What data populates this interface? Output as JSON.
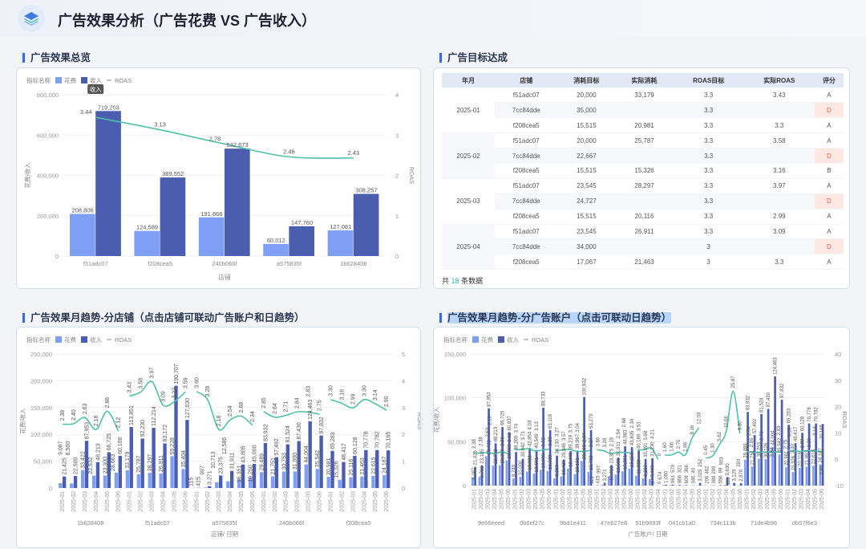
{
  "header": {
    "title": "广告效果分析（广告花费 VS 广告收入）",
    "logo_icon": "layers-icon"
  },
  "colors": {
    "spend": "#7f9ef5",
    "revenue": "#4b5daf",
    "roas": "#4fc2a9",
    "accent": "#3f66d6",
    "bad_grade_bg": "#fde8e4"
  },
  "sections": {
    "overview": "广告效果总览",
    "target": "广告目标达成",
    "store_trend": "广告效果月趋势-分店铺（点击店铺可联动广告账户和日趋势）",
    "account_trend": "广告效果月趋势-分广告账户（点击可联动日趋势）"
  },
  "legend": {
    "title": "指标名称",
    "spend": "花费",
    "revenue": "收入",
    "roas": "ROAS"
  },
  "table": {
    "columns": [
      "年月",
      "店铺",
      "消耗目标",
      "实际消耗",
      "ROAS目标",
      "实际ROAS",
      "评分"
    ],
    "groups": [
      {
        "month": "2025-01",
        "rows": [
          [
            "f51adc07",
            "20,000",
            "33,179",
            "3.3",
            "3.43",
            "A"
          ],
          [
            "7cc84dde",
            "35,000",
            "",
            "3.3",
            "",
            "D"
          ],
          [
            "f208cea5",
            "15,515",
            "20,981",
            "3.3",
            "3.3",
            "A"
          ]
        ]
      },
      {
        "month": "2025-02",
        "rows": [
          [
            "f51adc07",
            "20,000",
            "25,787",
            "3.3",
            "3.58",
            "A"
          ],
          [
            "7cc84dde",
            "22,667",
            "",
            "3.3",
            "",
            "D"
          ],
          [
            "f208cea5",
            "15,515",
            "15,326",
            "3.3",
            "3.16",
            "B"
          ]
        ]
      },
      {
        "month": "2025-03",
        "rows": [
          [
            "f51adc07",
            "23,545",
            "28,297",
            "3.3",
            "3.97",
            "A"
          ],
          [
            "7cc84dde",
            "24,727",
            "",
            "3.3",
            "",
            "D"
          ],
          [
            "f208cea5",
            "15,515",
            "20,116",
            "3.3",
            "2.99",
            "A"
          ]
        ]
      },
      {
        "month": "2025-04",
        "rows": [
          [
            "f51adc07",
            "23,545",
            "26,911",
            "3.3",
            "3.09",
            "A"
          ],
          [
            "7cc84dde",
            "34,000",
            "",
            "3",
            "",
            "D"
          ],
          [
            "f208cea5",
            "17,067",
            "21,463",
            "3",
            "3.3",
            "A"
          ]
        ]
      }
    ],
    "footer_prefix": "共",
    "footer_count": "18",
    "footer_suffix": "条数据"
  },
  "chart_data": [
    {
      "type": "bar+line",
      "id": "overview",
      "xlabel": "店铺",
      "ylabel": "花费/收入",
      "ylabel_right": "ROAS",
      "y_left": {
        "min": 0,
        "max": 800000,
        "ticks": [
          "0",
          "200,000",
          "400,000",
          "600,000",
          "800,000"
        ]
      },
      "y_right": {
        "min": 0,
        "max": 4,
        "ticks": [
          "0",
          "1",
          "2",
          "3",
          "4"
        ]
      },
      "tooltip": "收入",
      "continuous_line": true,
      "groups": [
        {
          "name": "",
          "categories": [
            "f51adc07",
            "f208cea5",
            "240b066f",
            "a575835f",
            "1b628408"
          ],
          "spend": [
            208806,
            124589,
            191666,
            60012,
            127081
          ],
          "revenue": [
            719203,
            389552,
            532673,
            147760,
            308257
          ],
          "roas": [
            3.44,
            3.13,
            2.78,
            2.46,
            2.43
          ]
        }
      ]
    },
    {
      "type": "bar+line",
      "id": "store_trend",
      "xlabel": "店铺/ 日期",
      "ylabel": "花费/收入",
      "ylabel_right": "ROAS",
      "y_left": {
        "min": 0,
        "max": 250000,
        "ticks": [
          "0",
          "50,000",
          "100,000",
          "150,000",
          "200,000",
          "250,000"
        ]
      },
      "y_right": {
        "min": 0,
        "max": 5,
        "ticks": [
          "0",
          "1",
          "2",
          "3",
          "4",
          "5"
        ]
      },
      "groups": [
        {
          "name": "1b628408",
          "categories": [
            "2025-01",
            "2025-02",
            "2025-03",
            "2025-04",
            "2025-05",
            "2025-06"
          ],
          "spend": [
            9087,
            8500,
            33422,
            22932,
            23300,
            28663
          ],
          "revenue": [
            21425,
            22500,
            87953,
            48213,
            66725,
            60100
          ],
          "roas": [
            2.38,
            2.4,
            2.63,
            2.18,
            2.86,
            2.12
          ]
        },
        {
          "name": "f51adc07",
          "categories": [
            "2025-01",
            "2025-02",
            "2025-03",
            "2025-04",
            "2025-05",
            "2025-06"
          ],
          "spend": [
            33179,
            25787,
            28297,
            26911,
            59228,
            35404
          ],
          "revenue": [
            113851,
            92230,
            112214,
            83172,
            190707,
            127030
          ],
          "roas": [
            3.43,
            3.58,
            3.97,
            3.09,
            3.22,
            3.59
          ]
        },
        {
          "name": "a575835f",
          "categories": [
            "2025-01",
            "2025-02",
            "2025-03",
            "2025-04",
            "2025-05",
            "2025-06"
          ],
          "spend": [
            115,
            997,
            10713,
            12586,
            16351,
            19250
          ],
          "revenue": [
            415,
            3271,
            23375,
            31911,
            43805,
            45000
          ],
          "roas": [
            3.6,
            3.28,
            2.18,
            2.54,
            2.68,
            2.34
          ]
        },
        {
          "name": "240b066f",
          "categories": [
            "2025-01",
            "2025-02",
            "2025-03",
            "2025-04",
            "2025-05",
            "2025-06"
          ],
          "spend": [
            29489,
            21751,
            30753,
            31000,
            44004,
            35542
          ],
          "revenue": [
            83932,
            57492,
            81524,
            87430,
            124463,
            97832
          ],
          "roas": [
            2.85,
            2.64,
            2.71,
            2.84,
            2.83,
            2.75
          ]
        },
        {
          "name": "f208cea5",
          "categories": [
            "2025-01",
            "2025-02",
            "2025-03",
            "2025-04",
            "2025-05",
            "2025-06"
          ],
          "spend": [
            20981,
            15326,
            20116,
            21463,
            22615,
            24187
          ],
          "revenue": [
            69283,
            48417,
            60128,
            70778,
            70782,
            70165
          ],
          "roas": [
            3.3,
            3.16,
            2.99,
            3.3,
            3.14,
            2.9
          ]
        }
      ]
    },
    {
      "type": "bar+line",
      "id": "account_trend",
      "xlabel": "广告账户/ 日期",
      "ylabel": "花费/收入",
      "ylabel_right": "ROAS",
      "y_left": {
        "min": 0,
        "max": 150000,
        "ticks": [
          "0",
          "50,000",
          "100,000",
          "150,000"
        ]
      },
      "y_right": {
        "min": -10,
        "max": 40,
        "ticks": [
          "-10",
          "0",
          "10",
          "20",
          "30",
          "40"
        ]
      },
      "groups": [
        {
          "name": "9e66eeed",
          "categories": [
            "2025-01",
            "2025-02",
            "2025-03",
            "2025-04",
            "2025-05",
            "2025-06"
          ],
          "spend": [
            9087,
            9700,
            33422,
            22932,
            23300,
            28663
          ],
          "revenue": [
            21425,
            23105,
            87953,
            48213,
            66725,
            60837
          ],
          "roas": [
            2.38,
            2.38,
            2.63,
            2.1,
            2.86,
            2.12
          ]
        },
        {
          "name": "0b6ef27c",
          "categories": [
            "2025-01",
            "2025-02",
            "2025-03",
            "2025-04",
            "2025-05",
            "2025-06"
          ],
          "spend": [
            8240,
            10000,
            16021,
            13691,
            18000,
            16588
          ],
          "revenue": [
            38269,
            30642,
            42854,
            40549,
            88733,
            63118
          ],
          "roas": [
            3.74,
            3.71,
            4.03,
            3.13,
            3.52,
            3.8
          ]
        },
        {
          "name": "9bd1e411",
          "categories": [
            "2025-01",
            "2025-02",
            "2025-03",
            "2025-04",
            "2025-05",
            "2025-06"
          ],
          "spend": [
            8350,
            10426,
            19440,
            13161,
            28000,
            15783
          ],
          "revenue": [
            34130,
            29846,
            39219,
            39967,
            100932,
            63279
          ],
          "roas": [
            3.27,
            3.57,
            3.75,
            3.04,
            2.97,
            3.37
          ]
        },
        {
          "name": "47e627e8",
          "categories": [
            "2025-01",
            "2025-02",
            "2025-03",
            "2025-04",
            "2025-05",
            "2025-06"
          ],
          "spend": [
            115,
            997,
            10713,
            12586,
            16351,
            19250
          ],
          "revenue": [
            415,
            3271,
            23375,
            31911,
            44983,
            43805
          ],
          "roas": [
            3.6,
            3.28,
            2.18,
            2.54,
            2.68,
            2.34
          ]
        },
        {
          "name": "91b9893f",
          "categories": [
            "2025-01",
            "2025-02",
            "2025-03",
            "2025-04"
          ],
          "spend": [
            11388,
            8260,
            7449,
            0
          ],
          "revenue": [
            40169,
            30391,
            31230,
            0
          ],
          "roas": [
            3.53,
            3.68,
            4.21,
            0
          ]
        },
        {
          "name": "041cb1a0",
          "categories": [
            "2025-01",
            "2025-02",
            "2025-03",
            "2025-04",
            "2025-05",
            "2025-06"
          ],
          "spend": [
            674,
            579,
            321,
            366,
            40,
            252
          ],
          "revenue": [
            1080,
            961,
            866,
            608,
            346,
            3029
          ],
          "roas": [
            1.6,
            1.66,
            2.7,
            1.66,
            8.16,
            12.03
          ]
        },
        {
          "name": "734c113b",
          "categories": [
            "2025-01",
            "2025-02",
            "2025-03",
            "2025-04",
            "2025-05",
            "2025-06"
          ],
          "spend": [
            462,
            299,
            99,
            903,
            121,
            293
          ],
          "revenue": [
            206,
            389,
            556,
            9630,
            3129,
            2870
          ],
          "roas": [
            0.45,
            1.3,
            5.62,
            10.66,
            25.87,
            9.8
          ]
        },
        {
          "name": "71de4b96",
          "categories": [
            "2025-01",
            "2025-02",
            "2025-03",
            "2025-04",
            "2025-05",
            "2025-06"
          ],
          "spend": [
            29489,
            21751,
            30753,
            30126,
            44004,
            35542
          ],
          "revenue": [
            83932,
            57492,
            81524,
            87430,
            124463,
            97832
          ],
          "roas": [
            2.85,
            2.64,
            2.71,
            2.84,
            2.83,
            2.75
          ]
        },
        {
          "name": "db57f6e3",
          "categories": [
            "2025-01",
            "2025-02",
            "2025-03",
            "2025-04",
            "2025-05",
            "2025-06"
          ],
          "spend": [
            20981,
            15326,
            20116,
            21463,
            22615,
            24187
          ],
          "revenue": [
            69283,
            48417,
            60128,
            70778,
            70782,
            70165
          ],
          "roas": [
            3.3,
            3.16,
            2.99,
            3.3,
            3.14,
            2.9
          ]
        }
      ]
    }
  ]
}
